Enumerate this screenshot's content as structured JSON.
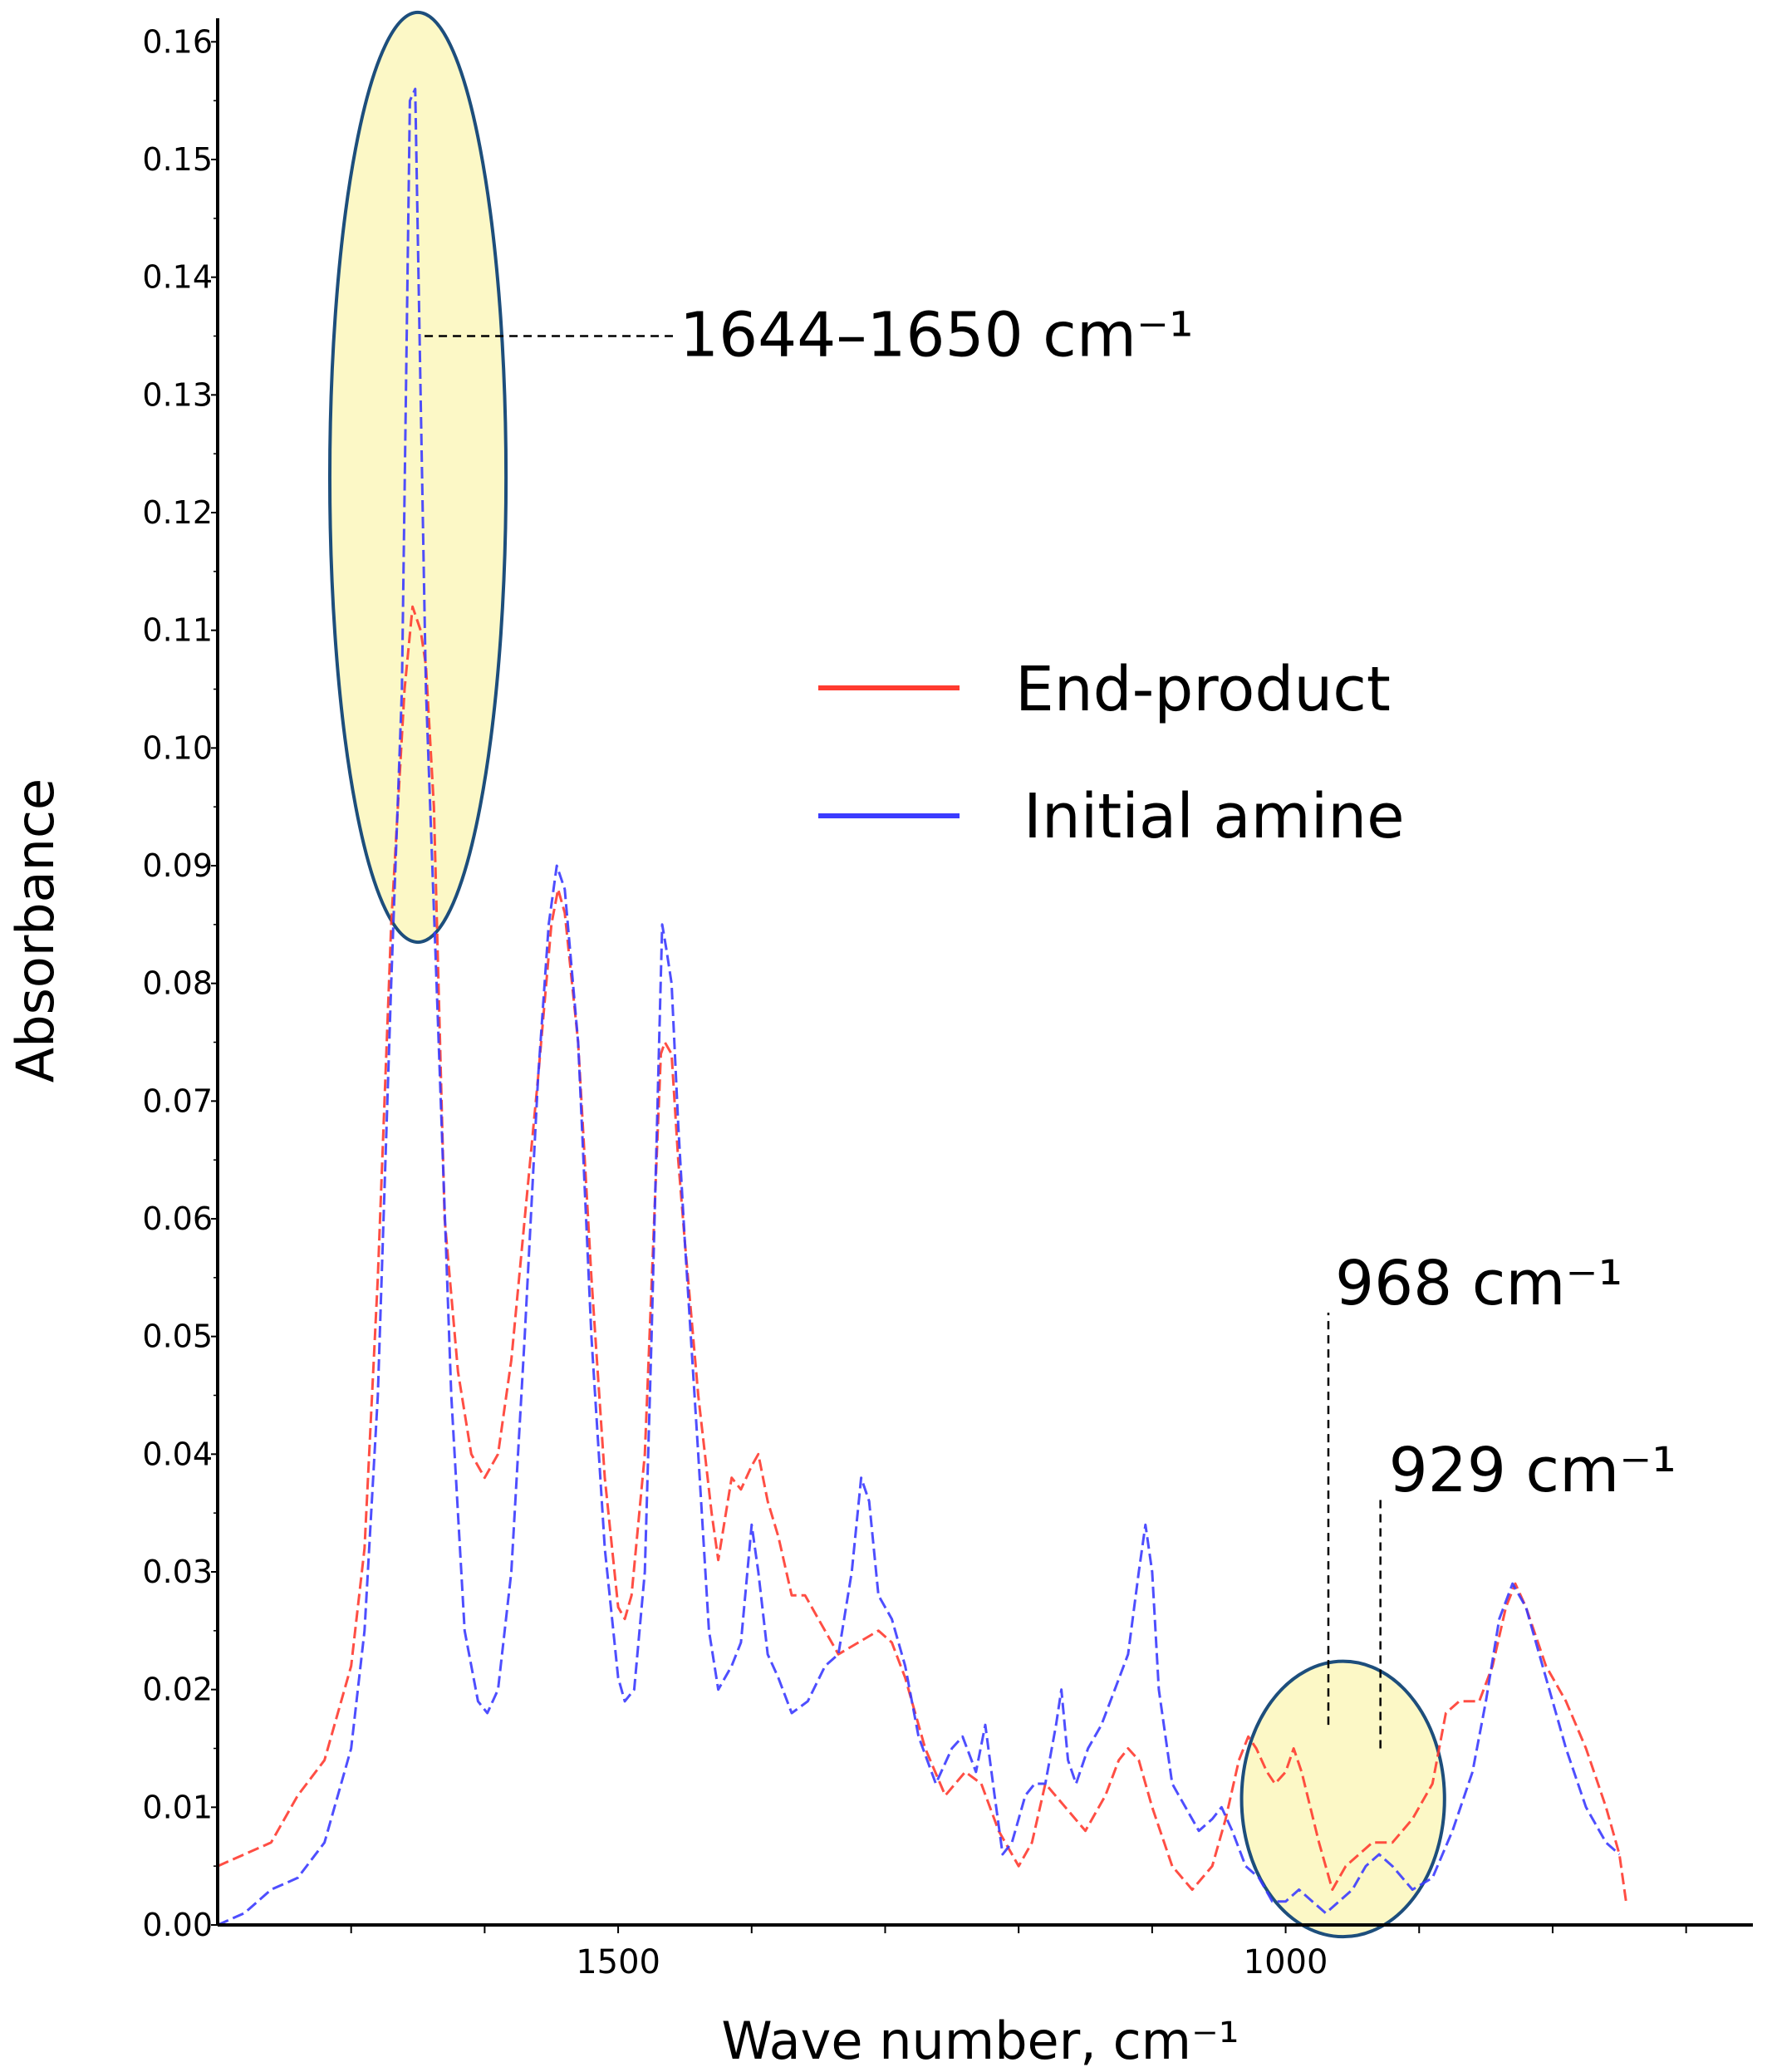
{
  "chart_data": {
    "type": "line",
    "xlabel": "Wave number, cm⁻¹",
    "ylabel": "Absorbance",
    "xlim": [
      1800,
      650
    ],
    "ylim": [
      0.0,
      0.162
    ],
    "x_reversed": true,
    "x_ticks": [
      1500,
      1000
    ],
    "y_ticks": [
      0.0,
      0.01,
      0.02,
      0.03,
      0.04,
      0.05,
      0.06,
      0.07,
      0.08,
      0.09,
      0.1,
      0.11,
      0.12,
      0.13,
      0.14,
      0.15,
      0.16
    ],
    "y_tick_labels": [
      "0.00",
      "0.01",
      "0.02",
      "0.03",
      "0.04",
      "0.05",
      "0.06",
      "0.07",
      "0.08",
      "0.09",
      "0.10",
      "0.11",
      "0.12",
      "0.13",
      "0.14",
      "0.15",
      "0.16"
    ],
    "legend_placement": "center-right",
    "series": [
      {
        "name": "End-product",
        "color": "#ff3b30",
        "points": [
          [
            1800,
            0.005
          ],
          [
            1760,
            0.007
          ],
          [
            1740,
            0.011
          ],
          [
            1720,
            0.014
          ],
          [
            1700,
            0.022
          ],
          [
            1690,
            0.032
          ],
          [
            1680,
            0.055
          ],
          [
            1670,
            0.085
          ],
          [
            1660,
            0.105
          ],
          [
            1654,
            0.112
          ],
          [
            1648,
            0.11
          ],
          [
            1644,
            0.107
          ],
          [
            1638,
            0.095
          ],
          [
            1630,
            0.06
          ],
          [
            1620,
            0.047
          ],
          [
            1610,
            0.04
          ],
          [
            1600,
            0.038
          ],
          [
            1590,
            0.04
          ],
          [
            1580,
            0.048
          ],
          [
            1570,
            0.06
          ],
          [
            1560,
            0.072
          ],
          [
            1550,
            0.085
          ],
          [
            1545,
            0.088
          ],
          [
            1540,
            0.086
          ],
          [
            1530,
            0.075
          ],
          [
            1520,
            0.055
          ],
          [
            1510,
            0.038
          ],
          [
            1500,
            0.027
          ],
          [
            1495,
            0.026
          ],
          [
            1490,
            0.028
          ],
          [
            1480,
            0.04
          ],
          [
            1473,
            0.06
          ],
          [
            1468,
            0.074
          ],
          [
            1465,
            0.075
          ],
          [
            1460,
            0.074
          ],
          [
            1455,
            0.065
          ],
          [
            1450,
            0.058
          ],
          [
            1440,
            0.045
          ],
          [
            1430,
            0.035
          ],
          [
            1425,
            0.031
          ],
          [
            1415,
            0.038
          ],
          [
            1408,
            0.037
          ],
          [
            1400,
            0.039
          ],
          [
            1395,
            0.04
          ],
          [
            1388,
            0.036
          ],
          [
            1380,
            0.033
          ],
          [
            1370,
            0.028
          ],
          [
            1360,
            0.028
          ],
          [
            1350,
            0.026
          ],
          [
            1335,
            0.023
          ],
          [
            1320,
            0.024
          ],
          [
            1305,
            0.025
          ],
          [
            1295,
            0.024
          ],
          [
            1285,
            0.021
          ],
          [
            1270,
            0.015
          ],
          [
            1255,
            0.011
          ],
          [
            1240,
            0.013
          ],
          [
            1228,
            0.012
          ],
          [
            1215,
            0.008
          ],
          [
            1200,
            0.005
          ],
          [
            1190,
            0.007
          ],
          [
            1180,
            0.012
          ],
          [
            1165,
            0.01
          ],
          [
            1150,
            0.008
          ],
          [
            1135,
            0.011
          ],
          [
            1125,
            0.014
          ],
          [
            1118,
            0.015
          ],
          [
            1110,
            0.014
          ],
          [
            1100,
            0.01
          ],
          [
            1085,
            0.005
          ],
          [
            1070,
            0.003
          ],
          [
            1055,
            0.005
          ],
          [
            1045,
            0.009
          ],
          [
            1035,
            0.014
          ],
          [
            1028,
            0.016
          ],
          [
            1022,
            0.015
          ],
          [
            1014,
            0.013
          ],
          [
            1008,
            0.012
          ],
          [
            1000,
            0.013
          ],
          [
            994,
            0.015
          ],
          [
            988,
            0.013
          ],
          [
            975,
            0.007
          ],
          [
            965,
            0.003
          ],
          [
            955,
            0.005
          ],
          [
            945,
            0.006
          ],
          [
            935,
            0.007
          ],
          [
            920,
            0.007
          ],
          [
            905,
            0.009
          ],
          [
            890,
            0.012
          ],
          [
            880,
            0.018
          ],
          [
            870,
            0.019
          ],
          [
            855,
            0.019
          ],
          [
            845,
            0.022
          ],
          [
            835,
            0.027
          ],
          [
            828,
            0.029
          ],
          [
            820,
            0.027
          ],
          [
            805,
            0.022
          ],
          [
            790,
            0.019
          ],
          [
            775,
            0.015
          ],
          [
            760,
            0.01
          ],
          [
            750,
            0.006
          ],
          [
            745,
            0.002
          ]
        ]
      },
      {
        "name": "Initial amine",
        "color": "#3b3bff",
        "points": [
          [
            1800,
            0.0
          ],
          [
            1780,
            0.001
          ],
          [
            1770,
            0.002
          ],
          [
            1760,
            0.003
          ],
          [
            1740,
            0.004
          ],
          [
            1720,
            0.007
          ],
          [
            1700,
            0.015
          ],
          [
            1690,
            0.025
          ],
          [
            1680,
            0.045
          ],
          [
            1670,
            0.08
          ],
          [
            1662,
            0.105
          ],
          [
            1656,
            0.155
          ],
          [
            1652,
            0.156
          ],
          [
            1648,
            0.13
          ],
          [
            1644,
            0.105
          ],
          [
            1636,
            0.08
          ],
          [
            1625,
            0.045
          ],
          [
            1615,
            0.025
          ],
          [
            1605,
            0.019
          ],
          [
            1598,
            0.018
          ],
          [
            1590,
            0.02
          ],
          [
            1580,
            0.03
          ],
          [
            1570,
            0.05
          ],
          [
            1560,
            0.072
          ],
          [
            1552,
            0.085
          ],
          [
            1546,
            0.09
          ],
          [
            1540,
            0.088
          ],
          [
            1530,
            0.075
          ],
          [
            1520,
            0.05
          ],
          [
            1510,
            0.032
          ],
          [
            1500,
            0.021
          ],
          [
            1495,
            0.019
          ],
          [
            1488,
            0.02
          ],
          [
            1480,
            0.03
          ],
          [
            1475,
            0.05
          ],
          [
            1470,
            0.072
          ],
          [
            1467,
            0.085
          ],
          [
            1464,
            0.083
          ],
          [
            1460,
            0.08
          ],
          [
            1455,
            0.068
          ],
          [
            1450,
            0.058
          ],
          [
            1440,
            0.04
          ],
          [
            1432,
            0.025
          ],
          [
            1425,
            0.02
          ],
          [
            1415,
            0.022
          ],
          [
            1408,
            0.024
          ],
          [
            1400,
            0.034
          ],
          [
            1395,
            0.03
          ],
          [
            1388,
            0.023
          ],
          [
            1380,
            0.021
          ],
          [
            1370,
            0.018
          ],
          [
            1358,
            0.019
          ],
          [
            1345,
            0.022
          ],
          [
            1335,
            0.023
          ],
          [
            1325,
            0.03
          ],
          [
            1318,
            0.038
          ],
          [
            1312,
            0.036
          ],
          [
            1305,
            0.028
          ],
          [
            1295,
            0.026
          ],
          [
            1285,
            0.022
          ],
          [
            1275,
            0.016
          ],
          [
            1262,
            0.012
          ],
          [
            1250,
            0.015
          ],
          [
            1242,
            0.016
          ],
          [
            1232,
            0.013
          ],
          [
            1225,
            0.017
          ],
          [
            1218,
            0.011
          ],
          [
            1212,
            0.006
          ],
          [
            1205,
            0.007
          ],
          [
            1195,
            0.011
          ],
          [
            1188,
            0.012
          ],
          [
            1180,
            0.012
          ],
          [
            1172,
            0.017
          ],
          [
            1168,
            0.02
          ],
          [
            1163,
            0.014
          ],
          [
            1157,
            0.012
          ],
          [
            1148,
            0.015
          ],
          [
            1138,
            0.017
          ],
          [
            1128,
            0.02
          ],
          [
            1118,
            0.023
          ],
          [
            1110,
            0.03
          ],
          [
            1105,
            0.034
          ],
          [
            1100,
            0.03
          ],
          [
            1095,
            0.02
          ],
          [
            1085,
            0.012
          ],
          [
            1075,
            0.01
          ],
          [
            1065,
            0.008
          ],
          [
            1055,
            0.009
          ],
          [
            1048,
            0.01
          ],
          [
            1040,
            0.008
          ],
          [
            1030,
            0.005
          ],
          [
            1020,
            0.004
          ],
          [
            1010,
            0.002
          ],
          [
            1000,
            0.002
          ],
          [
            990,
            0.003
          ],
          [
            980,
            0.002
          ],
          [
            970,
            0.001
          ],
          [
            960,
            0.002
          ],
          [
            950,
            0.003
          ],
          [
            940,
            0.005
          ],
          [
            930,
            0.006
          ],
          [
            920,
            0.005
          ],
          [
            905,
            0.003
          ],
          [
            890,
            0.004
          ],
          [
            875,
            0.008
          ],
          [
            860,
            0.013
          ],
          [
            850,
            0.019
          ],
          [
            840,
            0.026
          ],
          [
            830,
            0.029
          ],
          [
            820,
            0.027
          ],
          [
            805,
            0.021
          ],
          [
            790,
            0.015
          ],
          [
            775,
            0.01
          ],
          [
            760,
            0.007
          ],
          [
            750,
            0.006
          ]
        ]
      }
    ],
    "annotations": [
      {
        "text": "1644–1650 cm⁻¹",
        "x": 1645,
        "y": 0.135
      },
      {
        "text": "968 cm⁻¹",
        "x": 968,
        "y": 0.017
      },
      {
        "text": "929 cm⁻¹",
        "x": 929,
        "y": 0.015
      }
    ],
    "highlights": [
      {
        "x_center": 1650,
        "y_center": 0.123,
        "x_half_width": 66,
        "y_half_height": 0.0395
      },
      {
        "x_center": 957,
        "y_center": 0.0107,
        "x_half_width": 76,
        "y_half_height": 0.0117
      }
    ]
  }
}
